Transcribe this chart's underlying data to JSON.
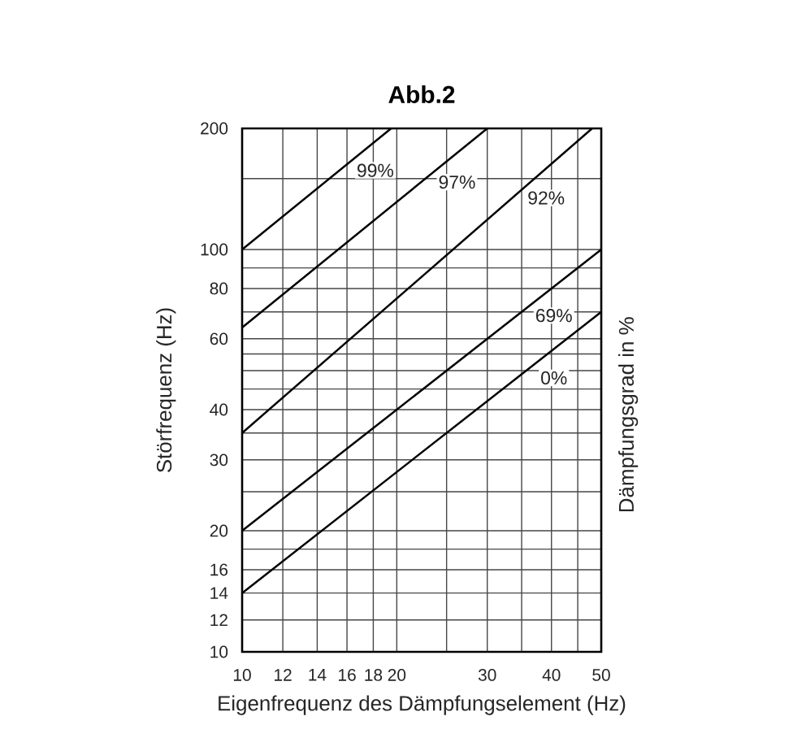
{
  "chart_data": {
    "type": "line",
    "title": "Abb.2",
    "xlabel": "Eigenfrequenz des Dämpfungselement (Hz)",
    "ylabel": "Störfrequenz (Hz)",
    "annotations": [
      "Dämpfungsgrad in %"
    ],
    "log": "xy",
    "grid": true,
    "xlim": [
      10,
      50
    ],
    "ylim": [
      10,
      200
    ],
    "xticks": [
      10,
      12,
      14,
      16,
      18,
      20,
      {
        "value": 25,
        "label": null
      },
      30,
      {
        "value": 35,
        "label": null
      },
      40,
      {
        "value": 45,
        "label": null
      },
      50
    ],
    "yticks": [
      10,
      12,
      14,
      16,
      {
        "value": 18,
        "label": null
      },
      20,
      {
        "value": 25,
        "label": null
      },
      30,
      {
        "value": 35,
        "label": null
      },
      40,
      {
        "value": 45,
        "label": null
      },
      {
        "value": 50,
        "label": null
      },
      {
        "value": 55,
        "label": null
      },
      60,
      {
        "value": 70,
        "label": null
      },
      80,
      {
        "value": 90,
        "label": null
      },
      100,
      {
        "value": 150,
        "label": null
      },
      200
    ],
    "series": [
      {
        "name": "99%",
        "color": "#000000",
        "x": [
          10,
          19.5
        ],
        "values": [
          100,
          200
        ]
      },
      {
        "name": "97%",
        "color": "#000000",
        "x": [
          10,
          30
        ],
        "values": [
          64,
          200
        ]
      },
      {
        "name": "92%",
        "color": "#000000",
        "x": [
          10,
          48
        ],
        "values": [
          35,
          200
        ]
      },
      {
        "name": "69%",
        "color": "#000000",
        "x": [
          10,
          50
        ],
        "values": [
          20,
          100
        ]
      },
      {
        "name": "0%",
        "color": "#000000",
        "x": [
          10,
          50
        ],
        "values": [
          14,
          70
        ]
      }
    ]
  }
}
